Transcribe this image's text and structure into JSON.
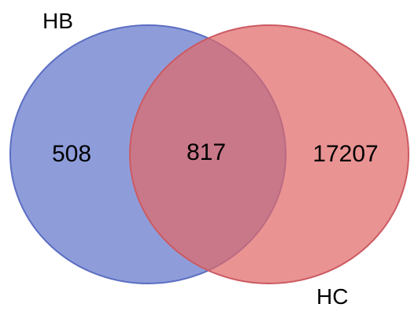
{
  "venn": {
    "sets": [
      {
        "name": "HB",
        "color": "#6e82cf",
        "stroke": "#5b6ec2"
      },
      {
        "name": "HC",
        "color": "#e06a6a",
        "stroke": "#cc5a62"
      }
    ],
    "regions": {
      "hb_only": "508",
      "intersection": "817",
      "hc_only": "17207"
    }
  }
}
